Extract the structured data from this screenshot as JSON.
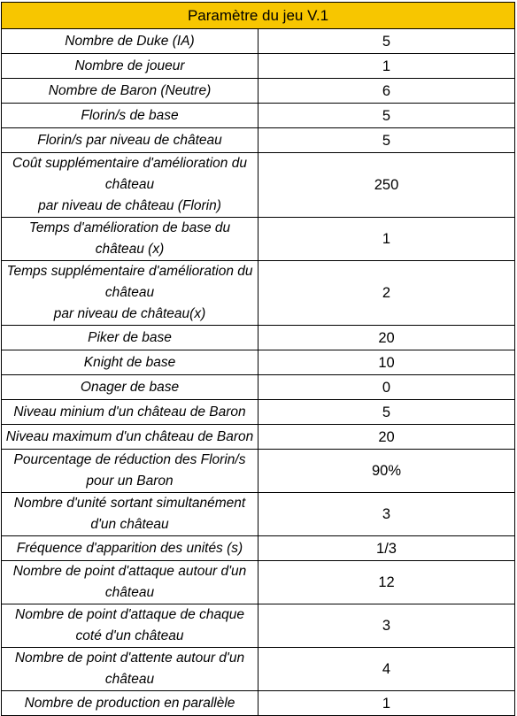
{
  "header": {
    "title": "Paramètre du jeu V.1",
    "accent_color": "#f7c600"
  },
  "rows": [
    {
      "label": [
        "Nombre de Duke (IA)"
      ],
      "value": "5"
    },
    {
      "label": [
        "Nombre de joueur"
      ],
      "value": "1"
    },
    {
      "label": [
        "Nombre de Baron (Neutre)"
      ],
      "value": "6"
    },
    {
      "label": [
        "Florin/s de base"
      ],
      "value": "5"
    },
    {
      "label": [
        "Florin/s par niveau de château"
      ],
      "value": "5"
    },
    {
      "label": [
        "Coût supplémentaire d'amélioration du château",
        "par niveau de château (Florin)"
      ],
      "value": "250"
    },
    {
      "label": [
        "Temps d'amélioration de base du château (x)"
      ],
      "value": "1"
    },
    {
      "label": [
        "Temps supplémentaire d'amélioration du château",
        "par niveau de château(x)"
      ],
      "value": "2"
    },
    {
      "label": [
        "Piker de base"
      ],
      "value": "20"
    },
    {
      "label": [
        "Knight de base"
      ],
      "value": "10"
    },
    {
      "label": [
        "Onager de base"
      ],
      "value": "0"
    },
    {
      "label": [
        "Niveau minium d'un château de Baron"
      ],
      "value": "5"
    },
    {
      "label": [
        "Niveau maximum d'un château de Baron"
      ],
      "value": "20"
    },
    {
      "label": [
        "Pourcentage de réduction des Florin/s pour un Baron"
      ],
      "value": "90%"
    },
    {
      "label": [
        "Nombre d'unité sortant simultanément d'un château"
      ],
      "value": "3"
    },
    {
      "label": [
        "Fréquence d'apparition des unités (s)"
      ],
      "value": "1/3"
    },
    {
      "label": [
        "Nombre de point d'attaque autour d'un château"
      ],
      "value": "12"
    },
    {
      "label": [
        "Nombre de point d'attaque de chaque coté d'un château"
      ],
      "value": "3"
    },
    {
      "label": [
        "Nombre de point d'attente autour d'un château"
      ],
      "value": "4"
    },
    {
      "label": [
        "Nombre de production en parallèle"
      ],
      "value": "1"
    }
  ]
}
